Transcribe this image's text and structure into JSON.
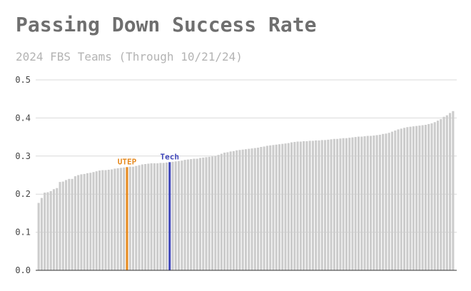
{
  "chart_data": {
    "type": "bar",
    "title": "Passing Down Success Rate",
    "subtitle": "2024 FBS Teams (Through 10/21/24)",
    "xlabel": "",
    "ylabel": "",
    "ylim": [
      0,
      0.5
    ],
    "yticks": [
      "0.0",
      "0.1",
      "0.2",
      "0.3",
      "0.4",
      "0.5"
    ],
    "grid": true,
    "bar_color": "#cccccc",
    "values": [
      0.177,
      0.19,
      0.204,
      0.205,
      0.208,
      0.213,
      0.216,
      0.232,
      0.233,
      0.237,
      0.24,
      0.24,
      0.247,
      0.25,
      0.252,
      0.253,
      0.255,
      0.256,
      0.258,
      0.26,
      0.262,
      0.263,
      0.263,
      0.264,
      0.265,
      0.267,
      0.268,
      0.269,
      0.27,
      0.271,
      0.272,
      0.272,
      0.274,
      0.276,
      0.278,
      0.279,
      0.28,
      0.281,
      0.281,
      0.281,
      0.282,
      0.282,
      0.283,
      0.284,
      0.285,
      0.286,
      0.287,
      0.288,
      0.29,
      0.291,
      0.292,
      0.293,
      0.293,
      0.295,
      0.296,
      0.297,
      0.298,
      0.299,
      0.3,
      0.303,
      0.306,
      0.309,
      0.31,
      0.312,
      0.313,
      0.315,
      0.316,
      0.317,
      0.318,
      0.319,
      0.32,
      0.321,
      0.322,
      0.324,
      0.325,
      0.327,
      0.328,
      0.329,
      0.33,
      0.331,
      0.332,
      0.333,
      0.334,
      0.336,
      0.337,
      0.338,
      0.338,
      0.339,
      0.339,
      0.34,
      0.34,
      0.341,
      0.341,
      0.342,
      0.342,
      0.343,
      0.344,
      0.345,
      0.345,
      0.346,
      0.347,
      0.347,
      0.348,
      0.349,
      0.35,
      0.351,
      0.351,
      0.352,
      0.353,
      0.353,
      0.354,
      0.355,
      0.356,
      0.358,
      0.359,
      0.361,
      0.364,
      0.367,
      0.37,
      0.372,
      0.374,
      0.376,
      0.377,
      0.378,
      0.379,
      0.38,
      0.381,
      0.382,
      0.384,
      0.386,
      0.389,
      0.393,
      0.397,
      0.403,
      0.407,
      0.413,
      0.418
    ],
    "highlights": [
      {
        "index": 29,
        "label": "UTEP",
        "color": "#e6891e"
      },
      {
        "index": 43,
        "label": "Tech",
        "color": "#3f46b8"
      }
    ]
  }
}
